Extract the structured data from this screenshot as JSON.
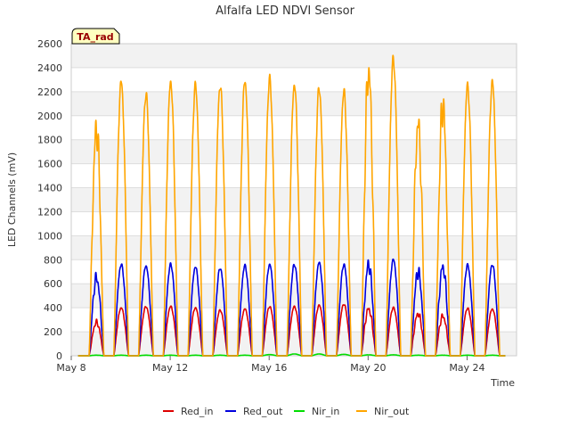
{
  "chart_data": {
    "type": "line",
    "title": "Alfalfa LED NDVI Sensor",
    "xlabel": "Time",
    "ylabel": "LED Channels (mV)",
    "site_tag": "TA_rad",
    "ylim": [
      0,
      2600
    ],
    "yticks": [
      0,
      200,
      400,
      600,
      800,
      1000,
      1200,
      1400,
      1600,
      1800,
      2000,
      2200,
      2400,
      2600
    ],
    "xlim_days": [
      8,
      26
    ],
    "xticks": [
      {
        "day": 8,
        "label": "May 8"
      },
      {
        "day": 12,
        "label": "May 12"
      },
      {
        "day": 16,
        "label": "May 16"
      },
      {
        "day": 20,
        "label": "May 20"
      },
      {
        "day": 24,
        "label": "May 24"
      }
    ],
    "day_peaks": {
      "days": [
        9,
        10,
        11,
        12,
        13,
        14,
        15,
        16,
        17,
        18,
        19,
        20,
        21,
        22,
        23,
        24,
        25
      ],
      "Red_in": [
        280,
        400,
        410,
        410,
        400,
        380,
        390,
        410,
        410,
        420,
        430,
        390,
        400,
        350,
        330,
        395,
        390
      ],
      "Red_out": [
        650,
        760,
        750,
        760,
        740,
        730,
        750,
        760,
        760,
        775,
        760,
        760,
        800,
        700,
        740,
        755,
        760
      ],
      "Nir_in": [
        5,
        5,
        5,
        5,
        5,
        5,
        5,
        10,
        15,
        15,
        12,
        8,
        8,
        5,
        5,
        5,
        5
      ],
      "Nir_out": [
        1890,
        2280,
        2180,
        2280,
        2250,
        2250,
        2290,
        2300,
        2260,
        2230,
        2200,
        2370,
        2470,
        1920,
        2090,
        2250,
        2280
      ]
    },
    "series": [
      {
        "name": "Red_in",
        "color": "#dd0000"
      },
      {
        "name": "Red_out",
        "color": "#0000dd"
      },
      {
        "name": "Nir_in",
        "color": "#00dd00"
      },
      {
        "name": "Nir_out",
        "color": "#ffa500"
      }
    ]
  }
}
